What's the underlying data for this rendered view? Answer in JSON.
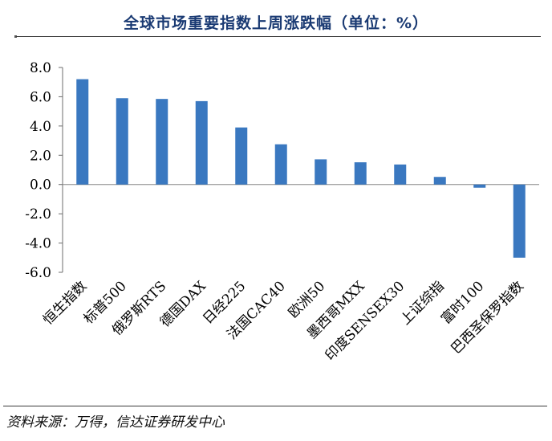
{
  "header": {
    "title": "全球市场重要指数上周涨跌幅（单位：%）"
  },
  "chart_data": {
    "type": "bar",
    "title": "全球市场重要指数上周涨跌幅（单位：%）",
    "categories": [
      "恒生指数",
      "标普500",
      "俄罗斯RTS",
      "德国DAX",
      "日经225",
      "法国CAC40",
      "欧洲50",
      "墨西哥MXX",
      "印度SENSEX30",
      "上证综指",
      "富时100",
      "巴西圣保罗指数"
    ],
    "values": [
      7.2,
      5.9,
      5.85,
      5.7,
      3.9,
      2.75,
      1.72,
      1.52,
      1.37,
      0.52,
      -0.22,
      -5.0
    ],
    "ylim": [
      -6,
      8
    ],
    "yticks": [
      "8.0",
      "6.0",
      "4.0",
      "2.0",
      "0.0",
      "-2.0",
      "-4.0",
      "-6.0"
    ],
    "ytick_values": [
      8,
      6,
      4,
      2,
      0,
      -2,
      -4,
      -6
    ],
    "grid": false,
    "bar_color": "#3a78c0"
  },
  "footer": {
    "source": "资料来源：万得，信达证券研发中心"
  }
}
